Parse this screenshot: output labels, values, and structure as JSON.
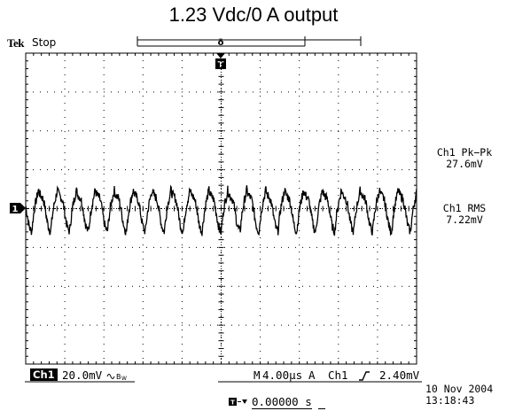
{
  "title": "1.23 Vdc/0 A output",
  "header": {
    "brand": "Tek",
    "status": "Stop"
  },
  "measurements": [
    {
      "label": "Ch1 Pk−Pk",
      "value": "27.6mV"
    },
    {
      "label": "Ch1 RMS",
      "value": "7.22mV"
    }
  ],
  "channel": {
    "badge": "Ch1",
    "scale": "20.0mV",
    "coupling_icon": "bandwidth-limit-icon"
  },
  "timebase": {
    "prefix": "M",
    "value": "4.00µs"
  },
  "trigger": {
    "mode": "A",
    "source": "Ch1",
    "slope_icon": "rising-edge-icon",
    "level": "2.40mV"
  },
  "trigger_position": {
    "value": "0.00000 s"
  },
  "datetime": {
    "date": "10 Nov 2004",
    "time": "13:18:43"
  },
  "markers": {
    "ground": "1",
    "trigger": "T"
  },
  "chart_data": {
    "type": "line",
    "title": "1.23 Vdc/0 A output",
    "xlabel": "",
    "ylabel": "",
    "x_unit": "s",
    "y_unit": "mV",
    "xlim": [
      -2e-05,
      2e-05
    ],
    "ylim": [
      -80,
      80
    ],
    "grid": true,
    "divisions": {
      "x": 10,
      "y": 8
    },
    "series": [
      {
        "waveform": "sawtooth-like ripple",
        "frequency_hz": 516000,
        "peak_to_peak_mV": 27.6,
        "rms_mV": 7.22,
        "offset_mV": 0
      }
    ]
  }
}
